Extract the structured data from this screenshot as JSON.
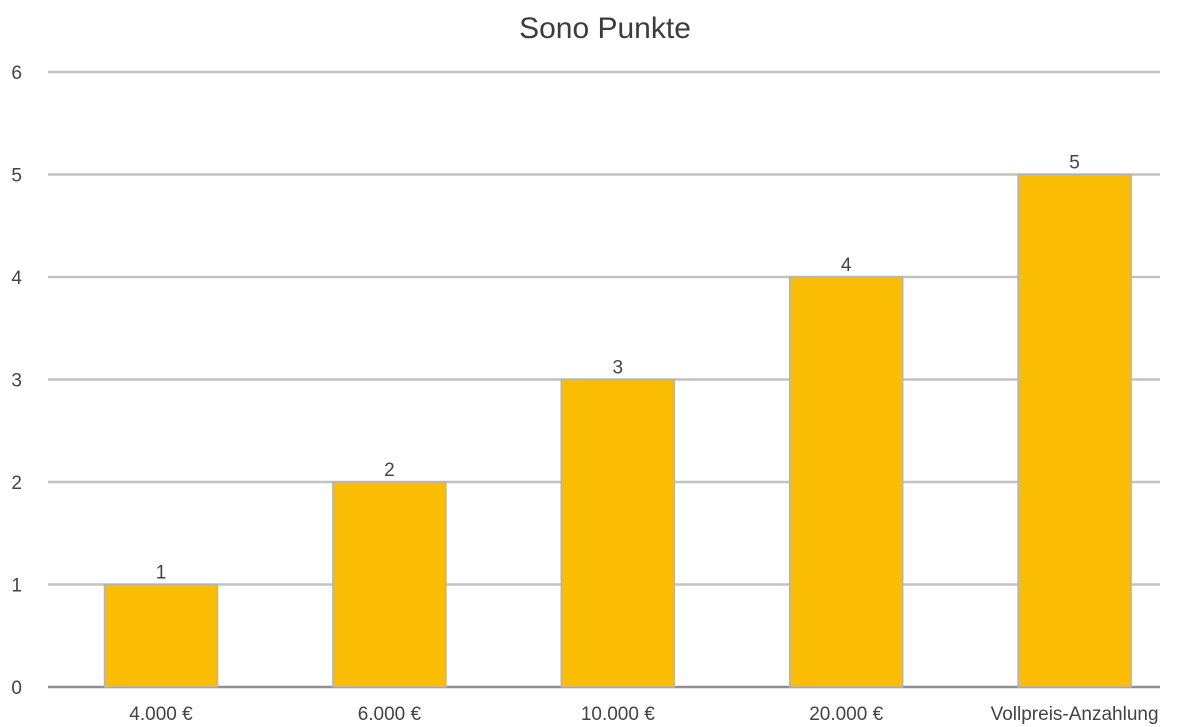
{
  "chart_data": {
    "type": "bar",
    "title": "Sono Punkte",
    "xlabel": "",
    "ylabel": "",
    "categories": [
      "4.000 €",
      "6.000 €",
      "10.000 €",
      "20.000 €",
      "Vollpreis-Anzahlung"
    ],
    "values": [
      1,
      2,
      3,
      4,
      5
    ],
    "data_labels": [
      "1",
      "2",
      "3",
      "4",
      "5"
    ],
    "ylim": [
      0,
      6
    ],
    "yticks": [
      "0",
      "1",
      "2",
      "3",
      "4",
      "5",
      "6"
    ],
    "grid": true,
    "legend": "none",
    "bar_color": "#FBBC04"
  }
}
